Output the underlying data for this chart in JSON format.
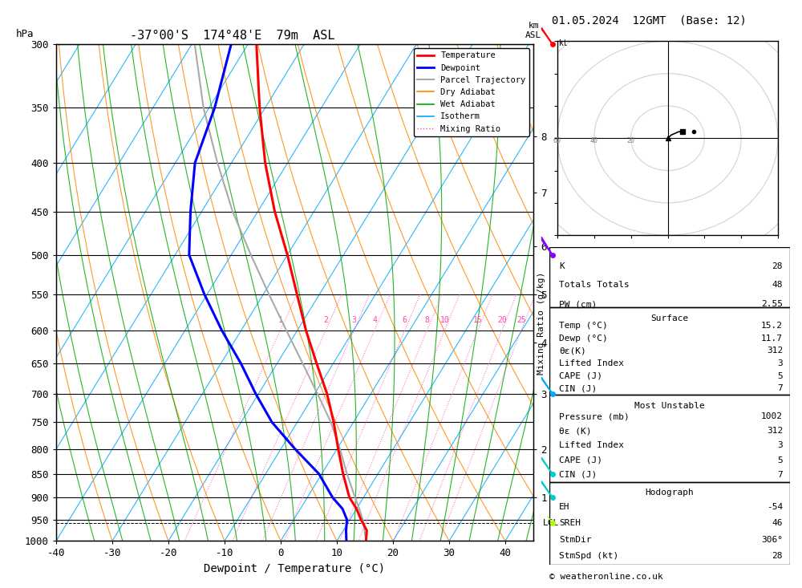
{
  "title_left": "-37°00'S  174°48'E  79m  ASL",
  "title_right": "01.05.2024  12GMT  (Base: 12)",
  "xlabel": "Dewpoint / Temperature (°C)",
  "pressure_levels": [
    300,
    350,
    400,
    450,
    500,
    550,
    600,
    650,
    700,
    750,
    800,
    850,
    900,
    950,
    1000
  ],
  "temp_xlim": [
    -40,
    45
  ],
  "temp_profile": {
    "pressure": [
      1000,
      975,
      950,
      925,
      900,
      850,
      800,
      750,
      700,
      650,
      600,
      550,
      500,
      450,
      400,
      350,
      300
    ],
    "temp": [
      15.2,
      14.2,
      12.0,
      10.0,
      7.5,
      3.8,
      0.2,
      -3.5,
      -7.8,
      -13.0,
      -18.5,
      -24.0,
      -30.0,
      -37.0,
      -44.0,
      -51.0,
      -58.5
    ]
  },
  "dewpoint_profile": {
    "pressure": [
      1000,
      975,
      950,
      925,
      900,
      850,
      800,
      750,
      700,
      650,
      600,
      550,
      500,
      450,
      400,
      350,
      300
    ],
    "temp": [
      11.7,
      10.5,
      9.5,
      7.5,
      4.5,
      -0.5,
      -7.5,
      -14.5,
      -20.5,
      -26.5,
      -33.5,
      -40.5,
      -47.5,
      -52.0,
      -56.5,
      -59.0,
      -63.0
    ]
  },
  "parcel_profile": {
    "pressure": [
      1000,
      975,
      957,
      925,
      900,
      850,
      800,
      750,
      700,
      650,
      600,
      550,
      500,
      450,
      400,
      350,
      300
    ],
    "temp": [
      15.2,
      13.8,
      12.8,
      10.5,
      8.5,
      4.5,
      0.5,
      -4.0,
      -9.5,
      -15.5,
      -22.0,
      -29.0,
      -36.5,
      -44.5,
      -52.5,
      -61.0,
      -69.5
    ]
  },
  "mixing_ratios": [
    1,
    2,
    3,
    4,
    6,
    8,
    10,
    15,
    20,
    25
  ],
  "km_levels": [
    1,
    2,
    3,
    4,
    5,
    6,
    7,
    8
  ],
  "km_pressures": [
    900,
    800,
    700,
    618,
    550,
    490,
    430,
    375
  ],
  "lcl_pressure": 957,
  "skew_factor": 45.0,
  "colors": {
    "temperature": "#ff0000",
    "dewpoint": "#0000ff",
    "parcel": "#aaaaaa",
    "dry_adiabat": "#ff8800",
    "wet_adiabat": "#00aa00",
    "isotherm": "#00aaff",
    "mixing_ratio_line": "#ff44aa",
    "mixing_ratio_text": "#ff44aa",
    "background": "#ffffff",
    "grid_line": "#000000"
  },
  "info_panel": {
    "K": 28,
    "Totals_Totals": 48,
    "PW_cm": 2.55,
    "Surface_Temp_C": 15.2,
    "Surface_Dewp_C": 11.7,
    "Surface_theta_e_K": 312,
    "Surface_Lifted_Index": 3,
    "Surface_CAPE_J": 5,
    "Surface_CIN_J": 7,
    "MU_Pressure_mb": 1002,
    "MU_theta_e_K": 312,
    "MU_Lifted_Index": 3,
    "MU_CAPE_J": 5,
    "MU_CIN_J": 7,
    "Hodo_EH": -54,
    "Hodo_SREH": 46,
    "Hodo_StmDir": "306°",
    "Hodo_StmSpd_kt": 28
  },
  "wind_barbs": [
    {
      "pressure": 300,
      "color": "#ff0000",
      "barb_flags": 2,
      "barb_half": 1,
      "side": "left"
    },
    {
      "pressure": 500,
      "color": "#8800ff",
      "barb_flags": 3,
      "barb_half": 1,
      "side": "left"
    },
    {
      "pressure": 700,
      "color": "#00aaff",
      "barb_flags": 2,
      "barb_half": 1,
      "side": "left"
    },
    {
      "pressure": 850,
      "color": "#00cccc",
      "barb_flags": 2,
      "barb_half": 0,
      "side": "left"
    },
    {
      "pressure": 900,
      "color": "#00cccc",
      "barb_flags": 2,
      "barb_half": 1,
      "side": "left"
    },
    {
      "pressure": 957,
      "color": "#aaff00",
      "barb_flags": 0,
      "barb_half": 1,
      "side": "left"
    }
  ]
}
